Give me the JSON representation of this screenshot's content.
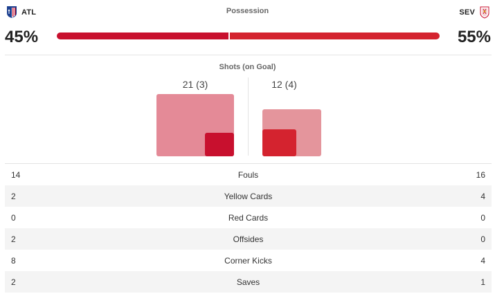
{
  "teams": {
    "home": {
      "abbr": "ATL",
      "crest_icon": "atletico-crest-icon"
    },
    "away": {
      "abbr": "SEV",
      "crest_icon": "sevilla-crest-icon"
    }
  },
  "possession": {
    "title": "Possession",
    "home_pct": "45%",
    "away_pct": "55%",
    "home_value": 45,
    "away_value": 55,
    "home_color": "#c8102e",
    "away_color": "#d4232f"
  },
  "shots": {
    "title": "Shots (on Goal)",
    "home_label": "21 (3)",
    "away_label": "12 (4)",
    "home_total": 21,
    "home_on_goal": 3,
    "away_total": 12,
    "away_on_goal": 4
  },
  "stats": [
    {
      "home": "14",
      "label": "Fouls",
      "away": "16"
    },
    {
      "home": "2",
      "label": "Yellow Cards",
      "away": "4"
    },
    {
      "home": "0",
      "label": "Red Cards",
      "away": "0"
    },
    {
      "home": "2",
      "label": "Offsides",
      "away": "0"
    },
    {
      "home": "8",
      "label": "Corner Kicks",
      "away": "4"
    },
    {
      "home": "2",
      "label": "Saves",
      "away": "1"
    }
  ]
}
